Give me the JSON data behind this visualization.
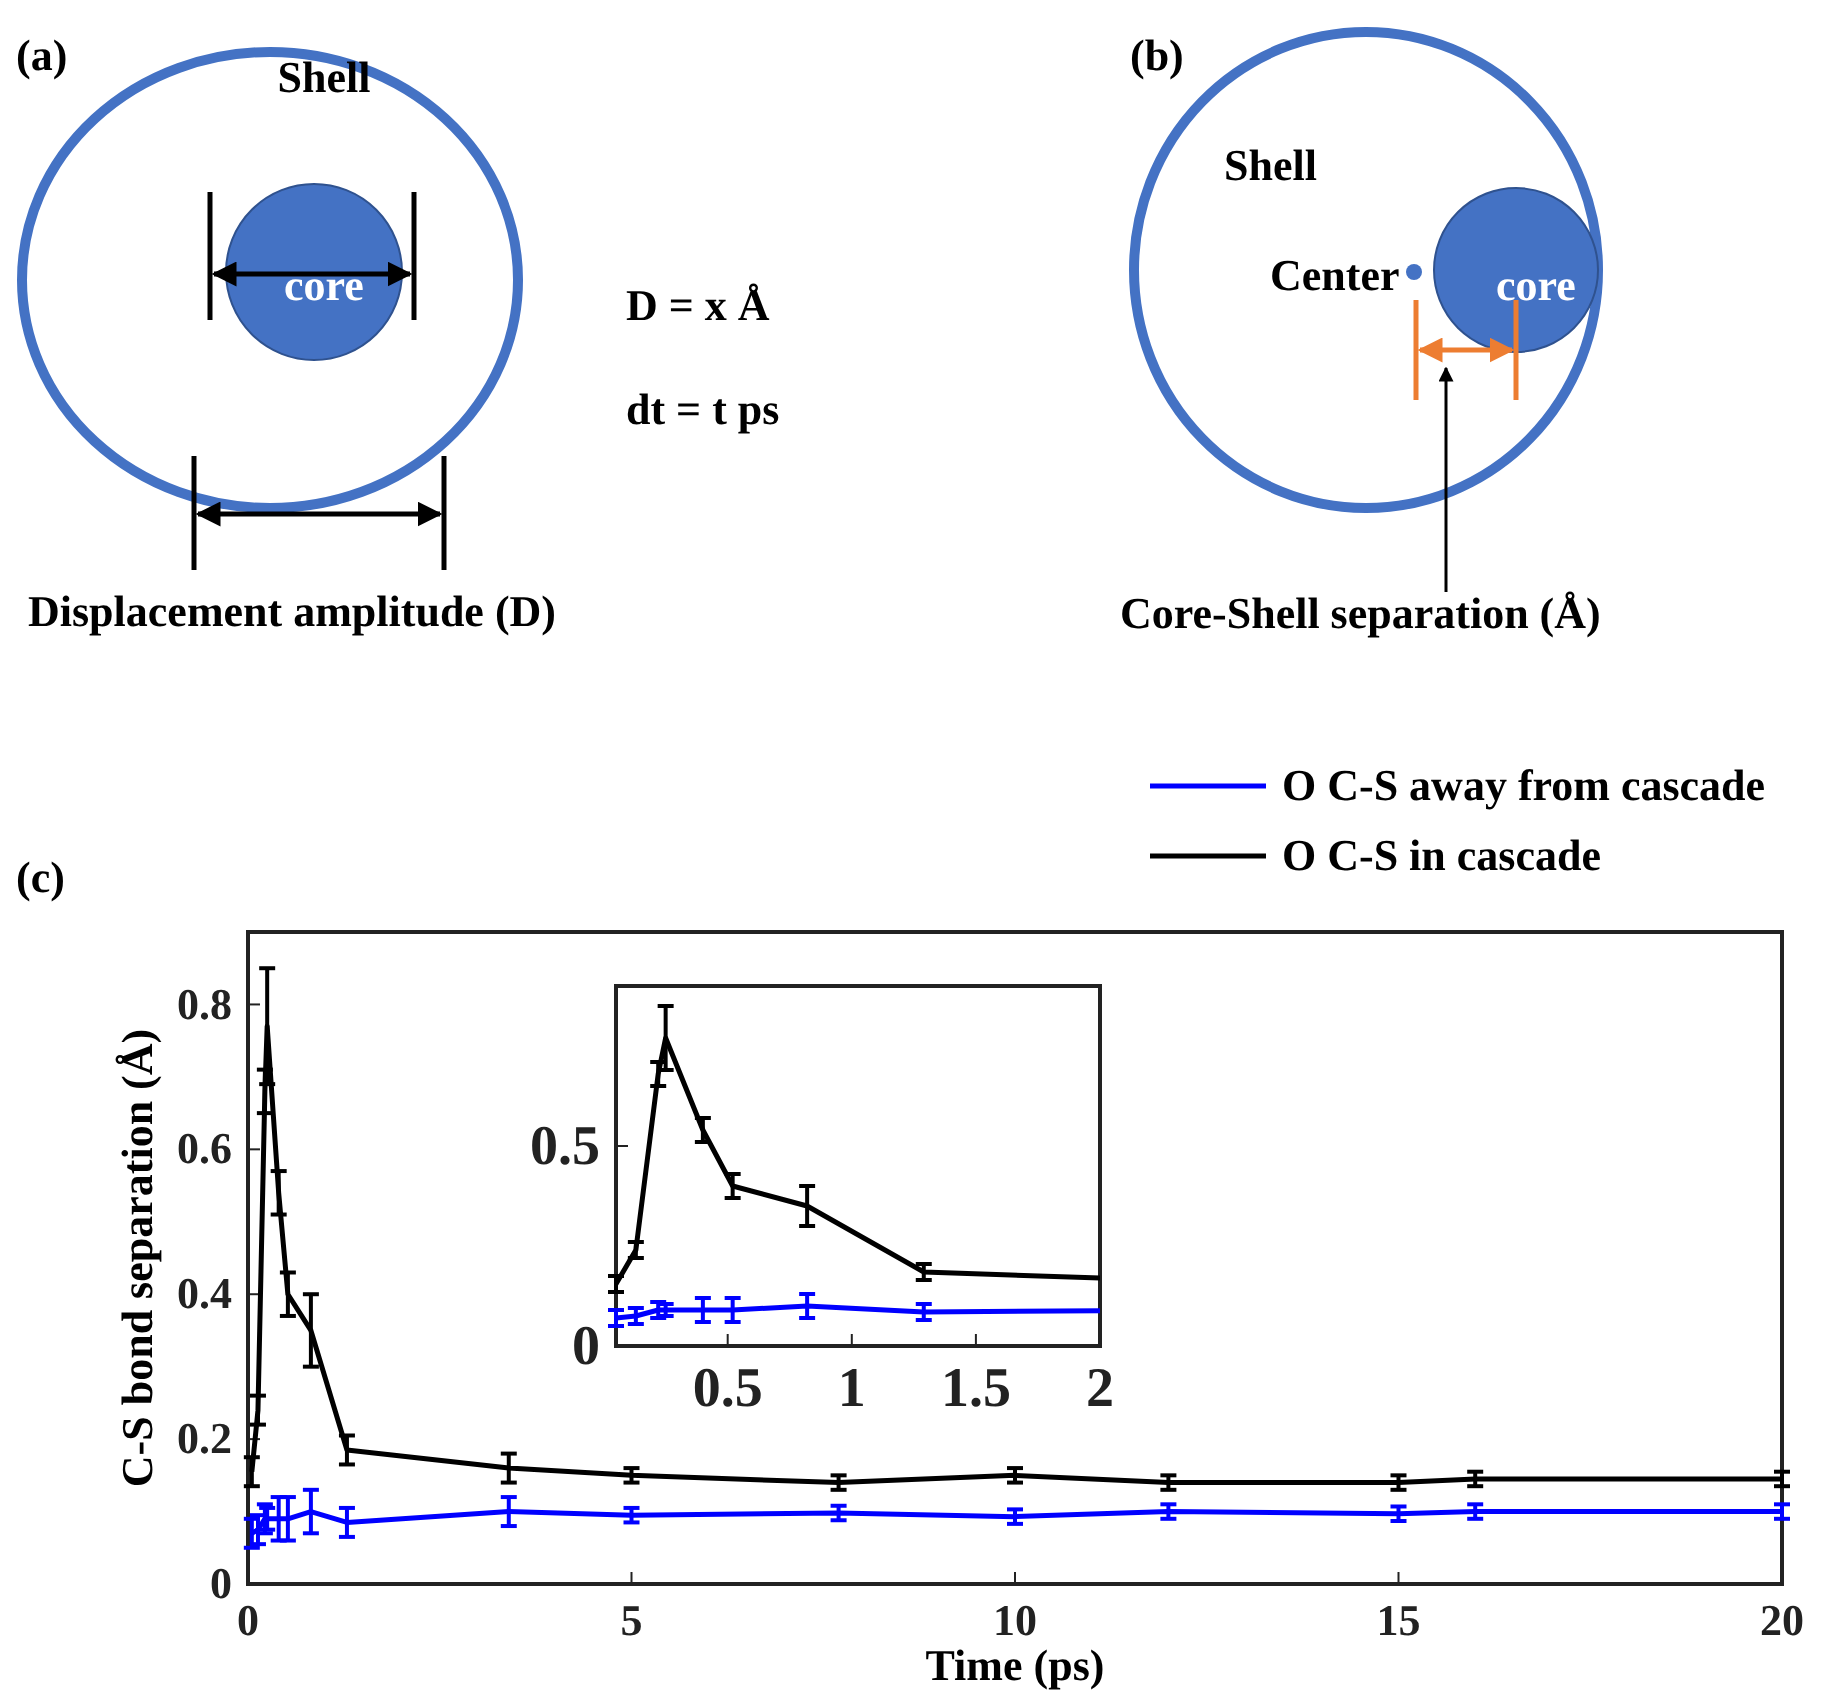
{
  "chart_data": [
    {
      "type": "other",
      "title": "(a)",
      "annotations": [
        "Shell",
        "core",
        "D = x Å",
        "dt = t ps",
        "Displacement amplitude (D)"
      ]
    },
    {
      "type": "other",
      "title": "(b)",
      "annotations": [
        "Shell",
        "Center",
        "core",
        "Core-Shell separation (Å)"
      ]
    },
    {
      "type": "line",
      "title": "(c)",
      "xlabel": "Time (ps)",
      "ylabel": "C-S bond separation (Å)",
      "xlim": [
        0,
        20
      ],
      "ylim": [
        0,
        0.9
      ],
      "xticks": [
        0,
        5,
        10,
        15,
        20
      ],
      "yticks": [
        0,
        0.2,
        0.4,
        0.6,
        0.8
      ],
      "grid": false,
      "legend": "top right",
      "line_style": "solid",
      "x": [
        0.05,
        0.13,
        0.22,
        0.25,
        0.4,
        0.52,
        0.82,
        1.29,
        3.4,
        5,
        7.7,
        10,
        12,
        15,
        16,
        20
      ],
      "series": [
        {
          "name": "O C-S away from cascade",
          "color": "#0000ff",
          "values": [
            0.07,
            0.075,
            0.09,
            0.09,
            0.09,
            0.09,
            0.1,
            0.085,
            0.1,
            0.095,
            0.098,
            0.093,
            0.1,
            0.097,
            0.1,
            0.1
          ],
          "errors": [
            0.02,
            0.02,
            0.02,
            0.015,
            0.03,
            0.03,
            0.03,
            0.02,
            0.02,
            0.01,
            0.01,
            0.01,
            0.01,
            0.01,
            0.01,
            0.01
          ]
        },
        {
          "name": "O C-S in cascade",
          "color": "#000000",
          "values": [
            0.155,
            0.24,
            0.68,
            0.77,
            0.54,
            0.4,
            0.35,
            0.185,
            0.16,
            0.15,
            0.14,
            0.15,
            0.14,
            0.14,
            0.145,
            0.145
          ],
          "errors": [
            0.02,
            0.02,
            0.03,
            0.08,
            0.03,
            0.03,
            0.05,
            0.02,
            0.02,
            0.01,
            0.01,
            0.01,
            0.01,
            0.01,
            0.01,
            0.01
          ]
        }
      ]
    },
    {
      "type": "line",
      "xlim": [
        0.05,
        2
      ],
      "ylim": [
        0,
        0.9
      ],
      "xticks": [
        0.5,
        1,
        1.5,
        2
      ],
      "yticks": [
        0,
        0.5
      ],
      "grid": false,
      "line_style": "solid",
      "x": [
        0.05,
        0.13,
        0.22,
        0.25,
        0.4,
        0.52,
        0.82,
        1.29,
        2
      ],
      "series": [
        {
          "color": "#0000ff",
          "values": [
            0.07,
            0.075,
            0.09,
            0.09,
            0.09,
            0.09,
            0.1,
            0.085,
            0.088
          ],
          "errors": [
            0.02,
            0.02,
            0.02,
            0.015,
            0.03,
            0.03,
            0.03,
            0.02,
            null
          ]
        },
        {
          "color": "#000000",
          "values": [
            0.155,
            0.24,
            0.68,
            0.77,
            0.54,
            0.4,
            0.35,
            0.185,
            0.17
          ],
          "errors": [
            0.02,
            0.02,
            0.03,
            0.08,
            0.03,
            0.03,
            0.05,
            0.02,
            null
          ]
        }
      ]
    }
  ]
}
